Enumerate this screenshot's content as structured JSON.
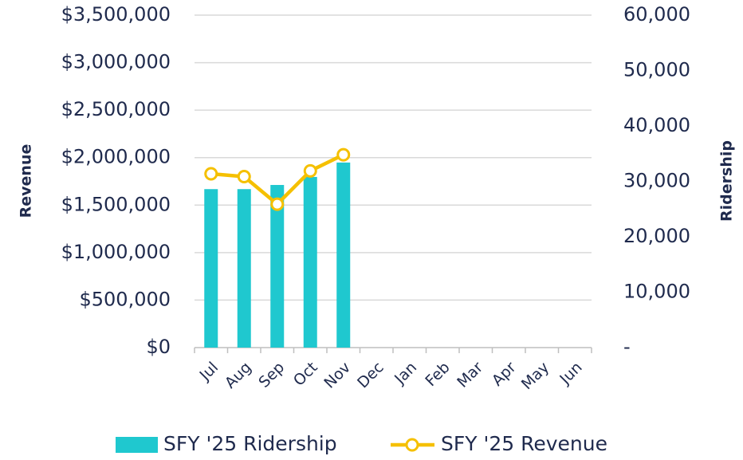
{
  "chart_data": {
    "type": "combo",
    "categories": [
      "Jul",
      "Aug",
      "Sep",
      "Oct",
      "Nov",
      "Dec",
      "Jan",
      "Feb",
      "Mar",
      "Apr",
      "May",
      "Jun"
    ],
    "series": [
      {
        "name": "SFY '25 Ridership",
        "type": "bar",
        "axis": "y2",
        "color": "#1fc8cf",
        "values": [
          28600,
          28600,
          29350,
          30800,
          33400,
          null,
          null,
          null,
          null,
          null,
          null,
          null
        ]
      },
      {
        "name": "SFY '25 Revenue",
        "type": "line",
        "axis": "y",
        "color": "#f5c000",
        "values": [
          1830000,
          1800000,
          1510000,
          1860000,
          2030000,
          null,
          null,
          null,
          null,
          null,
          null,
          null
        ]
      }
    ],
    "ylabel": "Revenue",
    "y2label": "Ridership",
    "ylim": [
      0,
      3500000
    ],
    "yticks": [
      {
        "value": 0,
        "label": "$0"
      },
      {
        "value": 500000,
        "label": "$500,000"
      },
      {
        "value": 1000000,
        "label": "$1,000,000"
      },
      {
        "value": 1500000,
        "label": "$1,500,000"
      },
      {
        "value": 2000000,
        "label": "$2,000,000"
      },
      {
        "value": 2500000,
        "label": "$2,500,000"
      },
      {
        "value": 3000000,
        "label": "$3,000,000"
      },
      {
        "value": 3500000,
        "label": "$3,500,000"
      }
    ],
    "y2lim": [
      0,
      60000
    ],
    "y2ticks": [
      {
        "value": 0,
        "label": "-"
      },
      {
        "value": 10000,
        "label": "10,000"
      },
      {
        "value": 20000,
        "label": "20,000"
      },
      {
        "value": 30000,
        "label": "30,000"
      },
      {
        "value": 40000,
        "label": "40,000"
      },
      {
        "value": 50000,
        "label": "50,000"
      },
      {
        "value": 60000,
        "label": "60,000"
      }
    ],
    "grid": true
  }
}
